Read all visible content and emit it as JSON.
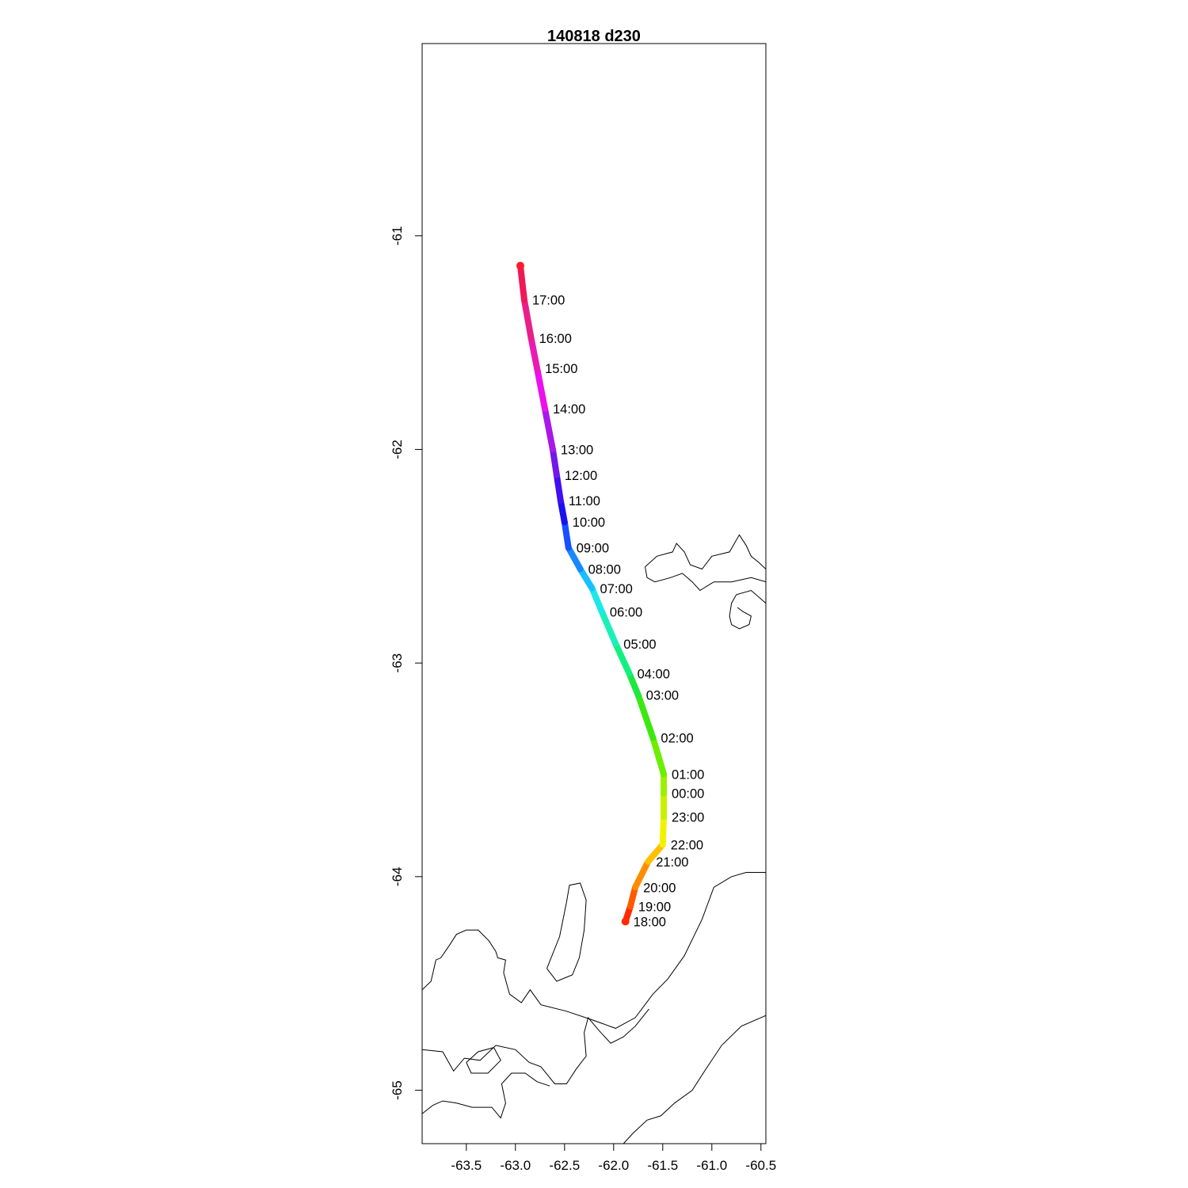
{
  "title": "140818   d230",
  "chart_data": {
    "type": "line",
    "title": "140818   d230",
    "xlabel": "",
    "ylabel": "",
    "xlim": [
      -63.95,
      -60.45
    ],
    "ylim": [
      -65.25,
      -60.1
    ],
    "x_ticks": [
      -63.5,
      -63.0,
      -62.5,
      -62.0,
      -61.5,
      -61.0,
      -60.5
    ],
    "x_tick_labels": [
      "-63.5",
      "-63.0",
      "-62.5",
      "-62.0",
      "-61.5",
      "-61.0",
      "-60.5"
    ],
    "y_ticks": [
      -61,
      -62,
      -63,
      -64,
      -65
    ],
    "y_tick_labels": [
      "-61",
      "-62",
      "-63",
      "-64",
      "-65"
    ],
    "grid": false,
    "legend": "none",
    "track": {
      "color_scale": "rainbow by time",
      "points": [
        {
          "time": "18:00",
          "lon": -61.88,
          "lat": -64.21,
          "color": "#ff2a00"
        },
        {
          "time": "19:00",
          "lon": -61.83,
          "lat": -64.14,
          "color": "#ff5a00"
        },
        {
          "time": "20:00",
          "lon": -61.78,
          "lat": -64.05,
          "color": "#ff8c00"
        },
        {
          "time": "21:00",
          "lon": -61.65,
          "lat": -63.93,
          "color": "#ffc000"
        },
        {
          "time": "22:00",
          "lon": -61.5,
          "lat": -63.85,
          "color": "#f2f200"
        },
        {
          "time": "23:00",
          "lon": -61.49,
          "lat": -63.72,
          "color": "#c8f000"
        },
        {
          "time": "00:00",
          "lon": -61.49,
          "lat": -63.61,
          "color": "#9cf000"
        },
        {
          "time": "01:00",
          "lon": -61.49,
          "lat": -63.52,
          "color": "#6bee00"
        },
        {
          "time": "02:00",
          "lon": -61.6,
          "lat": -63.35,
          "color": "#3ce810"
        },
        {
          "time": "03:00",
          "lon": -61.75,
          "lat": -63.15,
          "color": "#1ce840"
        },
        {
          "time": "04:00",
          "lon": -61.84,
          "lat": -63.05,
          "color": "#12f080"
        },
        {
          "time": "05:00",
          "lon": -61.98,
          "lat": -62.91,
          "color": "#1cf0b8"
        },
        {
          "time": "06:00",
          "lon": -62.12,
          "lat": -62.76,
          "color": "#1ce8e8"
        },
        {
          "time": "07:00",
          "lon": -62.22,
          "lat": -62.65,
          "color": "#18c0ff"
        },
        {
          "time": "08:00",
          "lon": -62.34,
          "lat": -62.56,
          "color": "#1a88ff"
        },
        {
          "time": "09:00",
          "lon": -62.46,
          "lat": -62.46,
          "color": "#1850ff"
        },
        {
          "time": "10:00",
          "lon": -62.5,
          "lat": -62.34,
          "color": "#1a10f0"
        },
        {
          "time": "11:00",
          "lon": -62.54,
          "lat": -62.24,
          "color": "#4010f0"
        },
        {
          "time": "12:00",
          "lon": -62.58,
          "lat": -62.12,
          "color": "#7418ec"
        },
        {
          "time": "13:00",
          "lon": -62.62,
          "lat": -62.0,
          "color": "#a818e8"
        },
        {
          "time": "14:00",
          "lon": -62.7,
          "lat": -61.81,
          "color": "#ec10ec"
        },
        {
          "time": "15:00",
          "lon": -62.78,
          "lat": -61.62,
          "color": "#e81cb4"
        },
        {
          "time": "16:00",
          "lon": -62.84,
          "lat": -61.48,
          "color": "#e8208a"
        },
        {
          "time": "17:00",
          "lon": -62.91,
          "lat": -61.3,
          "color": "#f01858"
        },
        {
          "time": "",
          "lon": -62.95,
          "lat": -61.14,
          "color": "#ff1a2a"
        }
      ]
    },
    "coastlines": [
      [
        [
          -63.95,
          -64.53
        ],
        [
          -63.86,
          -64.49
        ],
        [
          -63.81,
          -64.39
        ],
        [
          -63.76,
          -64.38
        ],
        [
          -63.67,
          -64.32
        ],
        [
          -63.6,
          -64.27
        ],
        [
          -63.5,
          -64.25
        ],
        [
          -63.38,
          -64.25
        ],
        [
          -63.27,
          -64.3
        ],
        [
          -63.2,
          -64.35
        ],
        [
          -63.18,
          -64.38
        ],
        [
          -63.1,
          -64.39
        ],
        [
          -63.12,
          -64.45
        ],
        [
          -63.06,
          -64.55
        ],
        [
          -62.94,
          -64.59
        ],
        [
          -62.85,
          -64.53
        ],
        [
          -62.74,
          -64.6
        ],
        [
          -62.48,
          -64.63
        ],
        [
          -62.22,
          -64.67
        ],
        [
          -61.98,
          -64.71
        ],
        [
          -61.78,
          -64.66
        ],
        [
          -61.6,
          -64.55
        ],
        [
          -61.45,
          -64.48
        ],
        [
          -61.28,
          -64.37
        ],
        [
          -61.1,
          -64.2
        ],
        [
          -60.98,
          -64.05
        ],
        [
          -60.8,
          -64.0
        ],
        [
          -60.65,
          -63.98
        ],
        [
          -60.45,
          -63.98
        ]
      ],
      [
        [
          -63.95,
          -64.81
        ],
        [
          -63.74,
          -64.82
        ],
        [
          -63.63,
          -64.91
        ],
        [
          -63.52,
          -64.85
        ],
        [
          -63.36,
          -64.86
        ],
        [
          -63.2,
          -64.79
        ],
        [
          -63.0,
          -64.81
        ],
        [
          -62.86,
          -64.87
        ],
        [
          -62.74,
          -64.89
        ],
        [
          -62.6,
          -64.97
        ],
        [
          -62.48,
          -64.97
        ],
        [
          -62.38,
          -64.9
        ],
        [
          -62.28,
          -64.84
        ],
        [
          -62.3,
          -64.73
        ],
        [
          -62.26,
          -64.66
        ],
        [
          -62.15,
          -64.72
        ],
        [
          -62.03,
          -64.78
        ],
        [
          -61.9,
          -64.75
        ],
        [
          -61.78,
          -64.7
        ],
        [
          -61.64,
          -64.62
        ]
      ],
      [
        [
          -63.95,
          -65.11
        ],
        [
          -63.84,
          -65.07
        ],
        [
          -63.74,
          -65.05
        ],
        [
          -63.6,
          -65.06
        ],
        [
          -63.44,
          -65.08
        ],
        [
          -63.24,
          -65.08
        ],
        [
          -63.15,
          -65.13
        ],
        [
          -63.1,
          -65.06
        ],
        [
          -63.14,
          -64.97
        ],
        [
          -63.04,
          -64.92
        ],
        [
          -62.9,
          -64.92
        ],
        [
          -62.78,
          -64.96
        ],
        [
          -62.65,
          -64.98
        ]
      ],
      [
        [
          -61.9,
          -65.25
        ],
        [
          -61.8,
          -65.2
        ],
        [
          -61.66,
          -65.14
        ],
        [
          -61.52,
          -65.12
        ],
        [
          -61.38,
          -65.06
        ],
        [
          -61.2,
          -65.0
        ],
        [
          -61.06,
          -64.9
        ],
        [
          -60.9,
          -64.79
        ],
        [
          -60.7,
          -64.7
        ],
        [
          -60.45,
          -64.65
        ]
      ],
      [
        [
          -63.5,
          -64.87
        ],
        [
          -63.38,
          -64.82
        ],
        [
          -63.22,
          -64.8
        ],
        [
          -63.15,
          -64.86
        ],
        [
          -63.28,
          -64.92
        ],
        [
          -63.45,
          -64.92
        ],
        [
          -63.5,
          -64.87
        ]
      ],
      [
        [
          -62.68,
          -64.43
        ],
        [
          -62.55,
          -64.28
        ],
        [
          -62.48,
          -64.12
        ],
        [
          -62.45,
          -64.04
        ],
        [
          -62.34,
          -64.03
        ],
        [
          -62.28,
          -64.11
        ],
        [
          -62.3,
          -64.25
        ],
        [
          -62.35,
          -64.38
        ],
        [
          -62.42,
          -64.46
        ],
        [
          -62.58,
          -64.49
        ],
        [
          -62.68,
          -64.43
        ]
      ],
      [
        [
          -61.68,
          -62.55
        ],
        [
          -61.56,
          -62.5
        ],
        [
          -61.4,
          -62.48
        ],
        [
          -61.36,
          -62.44
        ],
        [
          -61.28,
          -62.48
        ],
        [
          -61.22,
          -62.54
        ],
        [
          -61.1,
          -62.56
        ],
        [
          -61.0,
          -62.5
        ],
        [
          -60.82,
          -62.48
        ],
        [
          -60.72,
          -62.4
        ],
        [
          -60.65,
          -62.45
        ],
        [
          -60.6,
          -62.5
        ],
        [
          -60.52,
          -62.53
        ],
        [
          -60.45,
          -62.56
        ]
      ],
      [
        [
          -61.68,
          -62.55
        ],
        [
          -61.66,
          -62.6
        ],
        [
          -61.58,
          -62.62
        ],
        [
          -61.42,
          -62.6
        ],
        [
          -61.3,
          -62.58
        ],
        [
          -61.2,
          -62.62
        ],
        [
          -61.12,
          -62.66
        ],
        [
          -61.05,
          -62.64
        ],
        [
          -60.98,
          -62.62
        ],
        [
          -60.8,
          -62.62
        ],
        [
          -60.6,
          -62.6
        ],
        [
          -60.45,
          -62.62
        ]
      ],
      [
        [
          -60.45,
          -62.72
        ],
        [
          -60.6,
          -62.66
        ],
        [
          -60.75,
          -62.68
        ],
        [
          -60.8,
          -62.72
        ],
        [
          -60.82,
          -62.78
        ],
        [
          -60.8,
          -62.82
        ],
        [
          -60.72,
          -62.84
        ],
        [
          -60.62,
          -62.82
        ],
        [
          -60.6,
          -62.78
        ],
        [
          -60.68,
          -62.76
        ],
        [
          -60.74,
          -62.74
        ]
      ]
    ]
  }
}
